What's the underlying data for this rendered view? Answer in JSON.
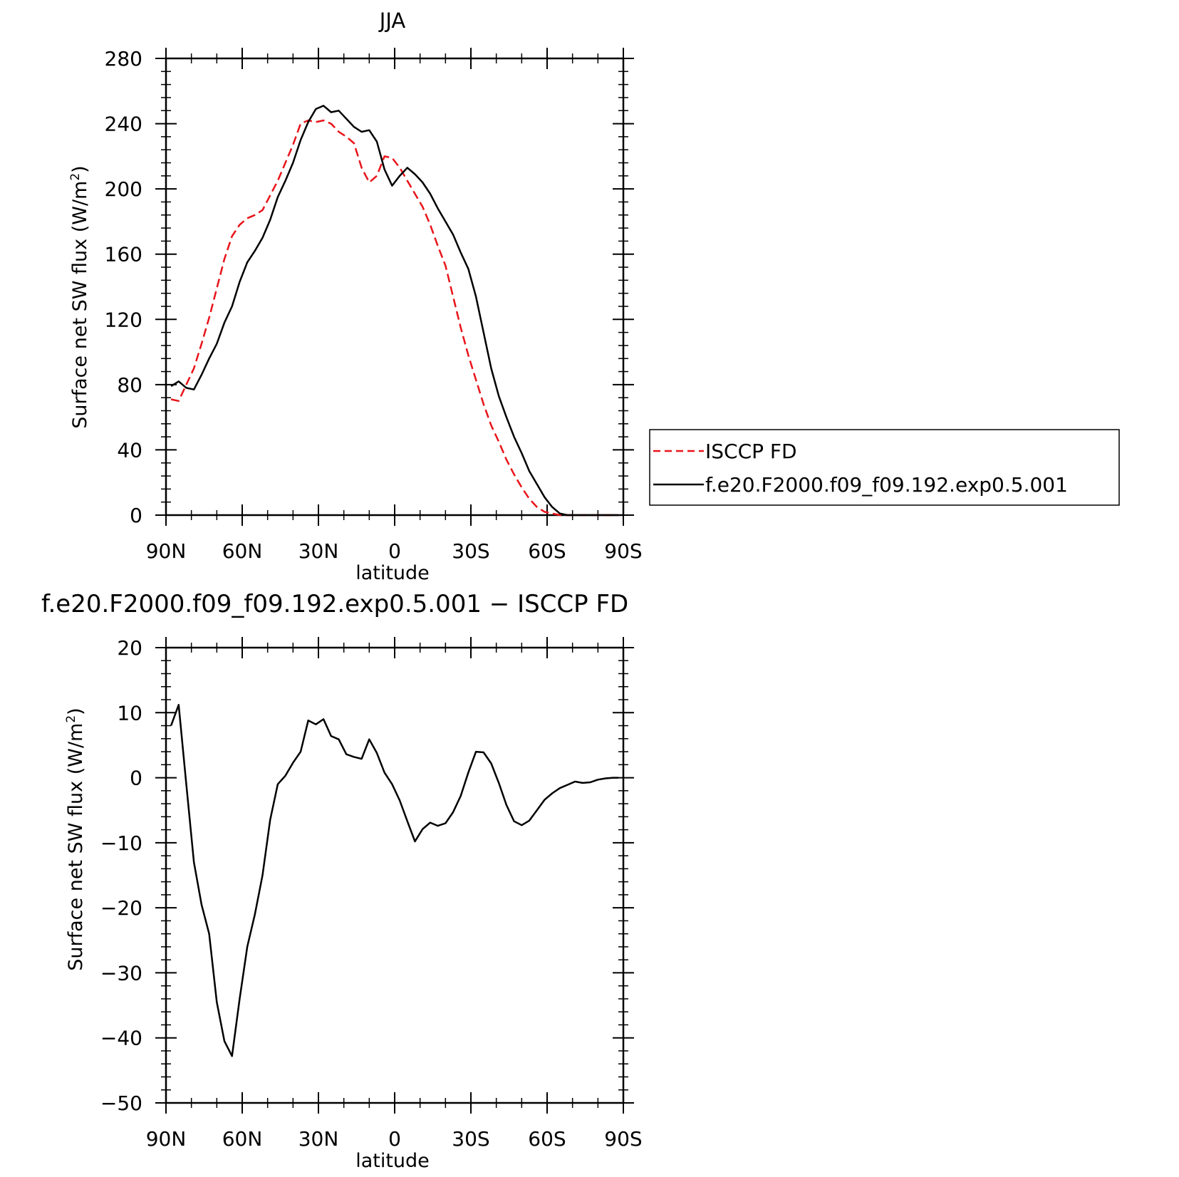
{
  "chart_data": [
    {
      "type": "line",
      "title": "JJA",
      "xlabel": "latitude",
      "ylabel_main": "Surface net SW flux (W/m",
      "ylabel_sup": "2",
      "ylabel_close": ")",
      "xlim": [
        90,
        -90
      ],
      "ylim": [
        0,
        280
      ],
      "yticks": [
        0,
        40,
        80,
        120,
        160,
        200,
        240,
        280
      ],
      "xticks": [
        90,
        60,
        30,
        0,
        -30,
        -60,
        -90
      ],
      "xticklabels": [
        "90N",
        "60N",
        "30N",
        "0",
        "30S",
        "60S",
        "90S"
      ],
      "grid": false,
      "legend_position": "right",
      "series": [
        {
          "name": "ISCCP FD",
          "color": "#e8141a",
          "dash": "dashed",
          "x": [
            88,
            85,
            82,
            79,
            76,
            73,
            70,
            67,
            64,
            61,
            58,
            55,
            52,
            49,
            46,
            43,
            40,
            37,
            34,
            31,
            28,
            25,
            22,
            19,
            16,
            13,
            10,
            7,
            4,
            1,
            -2,
            -5,
            -8,
            -11,
            -14,
            -17,
            -20,
            -23,
            -26,
            -29,
            -32,
            -35,
            -38,
            -41,
            -44,
            -47,
            -50,
            -53,
            -56,
            -59,
            -62,
            -65,
            -68,
            -71,
            -74,
            -77,
            -80,
            -83,
            -86,
            -88
          ],
          "y": [
            71,
            70,
            80,
            90,
            105,
            121,
            139,
            157,
            171,
            178,
            182,
            184,
            187,
            196,
            205,
            216,
            227,
            240,
            242,
            241,
            242,
            240,
            235,
            232,
            228,
            213,
            204,
            208,
            220,
            219,
            213,
            205,
            197,
            189,
            178,
            165,
            153,
            134,
            115,
            98,
            83,
            68,
            55,
            45,
            34,
            25,
            17,
            10,
            5,
            2,
            1,
            0,
            0,
            0,
            0,
            0,
            0,
            0,
            0,
            0
          ]
        },
        {
          "name": "f.e20.F2000.f09_f09.192.exp0.5.001",
          "color": "#000000",
          "dash": "solid",
          "x": [
            88,
            85,
            82,
            79,
            76,
            73,
            70,
            67,
            64,
            61,
            58,
            55,
            52,
            49,
            46,
            43,
            40,
            37,
            34,
            31,
            28,
            25,
            22,
            19,
            16,
            13,
            10,
            7,
            4,
            1,
            -2,
            -5,
            -8,
            -11,
            -14,
            -17,
            -20,
            -23,
            -26,
            -29,
            -32,
            -35,
            -38,
            -41,
            -44,
            -47,
            -50,
            -53,
            -56,
            -59,
            -62,
            -65,
            -68,
            -71,
            -74,
            -77,
            -80,
            -83,
            -86,
            -88
          ],
          "y": [
            79,
            82,
            78,
            77,
            86,
            96,
            105,
            118,
            128,
            143,
            155,
            162,
            170,
            181,
            195,
            205,
            216,
            230,
            241,
            249,
            251,
            247,
            248,
            243,
            238,
            235,
            236,
            229,
            212,
            202,
            208,
            213,
            209,
            204,
            197,
            188,
            180,
            172,
            161,
            151,
            134,
            112,
            90,
            73,
            60,
            48,
            38,
            27,
            19,
            11,
            5,
            1,
            0,
            0,
            0,
            0,
            0,
            0,
            0,
            0
          ]
        }
      ]
    },
    {
      "type": "line",
      "title": "f.e20.F2000.f09_f09.192.exp0.5.001 − ISCCP FD",
      "xlabel": "latitude",
      "ylabel_main": "Surface net SW flux (W/m",
      "ylabel_sup": "2",
      "ylabel_close": ")",
      "xlim": [
        90,
        -90
      ],
      "ylim": [
        -50,
        20
      ],
      "yticks": [
        -50,
        -40,
        -30,
        -20,
        -10,
        0,
        10,
        20
      ],
      "yticklabels": [
        "−50",
        "−40",
        "−30",
        "−20",
        "−10",
        "0",
        "10",
        "20"
      ],
      "xticks": [
        90,
        60,
        30,
        0,
        -30,
        -60,
        -90
      ],
      "xticklabels": [
        "90N",
        "60N",
        "30N",
        "0",
        "30S",
        "60S",
        "90S"
      ],
      "grid": false,
      "series": [
        {
          "name": "",
          "color": "#000000",
          "dash": "solid",
          "x": [
            88,
            85,
            82,
            79,
            76,
            73,
            70,
            67,
            64,
            61,
            58,
            55,
            52,
            49,
            46,
            43,
            40,
            37,
            34,
            31,
            28,
            25,
            22,
            19,
            16,
            13,
            10,
            7,
            4,
            1,
            -2,
            -5,
            -8,
            -11,
            -14,
            -17,
            -20,
            -23,
            -26,
            -29,
            -32,
            -35,
            -38,
            -41,
            -44,
            -47,
            -50,
            -53,
            -56,
            -59,
            -62,
            -65,
            -68,
            -71,
            -74,
            -77,
            -80,
            -83,
            -86,
            -88
          ],
          "y": [
            8,
            11.2,
            -1,
            -13,
            -19.5,
            -24,
            -34.5,
            -40.5,
            -42.8,
            -34,
            -26,
            -21,
            -15,
            -6.5,
            -1,
            0.3,
            2.3,
            4,
            8.8,
            8.2,
            9,
            6.4,
            5.9,
            3.6,
            3.2,
            2.9,
            5.9,
            3.8,
            0.8,
            -1,
            -3.5,
            -6.7,
            -9.8,
            -7.9,
            -6.9,
            -7.4,
            -7,
            -5.3,
            -2.8,
            0.8,
            4,
            3.9,
            2.2,
            -0.8,
            -4.2,
            -6.7,
            -7.3,
            -6.6,
            -5,
            -3.4,
            -2.4,
            -1.6,
            -1.1,
            -0.6,
            -0.8,
            -0.7,
            -0.3,
            -0.1,
            0,
            0
          ]
        }
      ]
    }
  ]
}
